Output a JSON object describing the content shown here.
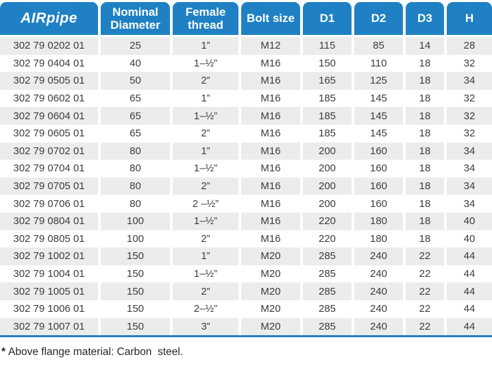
{
  "colors": {
    "header_blue": "#1f81c4",
    "row_stripe": "#ececec",
    "cell_text": "#3c3c3c"
  },
  "table": {
    "columns": [
      {
        "id": "brand",
        "label": "AIRpipe",
        "logo": true
      },
      {
        "id": "nominal-diameter",
        "label": "Nominal Diameter"
      },
      {
        "id": "female-thread",
        "label": "Female thread"
      },
      {
        "id": "bolt-size",
        "label": "Bolt size"
      },
      {
        "id": "d1",
        "label": "D1"
      },
      {
        "id": "d2",
        "label": "D2"
      },
      {
        "id": "d3",
        "label": "D3"
      },
      {
        "id": "h",
        "label": "H"
      }
    ],
    "rows": [
      [
        "302 79 0202 01",
        "25",
        "1”",
        "M12",
        "115",
        "85",
        "14",
        "28"
      ],
      [
        "302 79 0404 01",
        "40",
        "1–½”",
        "M16",
        "150",
        "110",
        "18",
        "32"
      ],
      [
        "302 79 0505 01",
        "50",
        "2”",
        "M16",
        "165",
        "125",
        "18",
        "34"
      ],
      [
        "302 79 0602 01",
        "65",
        "1”",
        "M16",
        "185",
        "145",
        "18",
        "32"
      ],
      [
        "302 79 0604 01",
        "65",
        "1–½”",
        "M16",
        "185",
        "145",
        "18",
        "32"
      ],
      [
        "302 79 0605 01",
        "65",
        "2”",
        "M16",
        "185",
        "145",
        "18",
        "32"
      ],
      [
        "302 79 0702 01",
        "80",
        "1”",
        "M16",
        "200",
        "160",
        "18",
        "34"
      ],
      [
        "302 79 0704 01",
        "80",
        "1–½”",
        "M16",
        "200",
        "160",
        "18",
        "34"
      ],
      [
        "302 79 0705 01",
        "80",
        "2”",
        "M16",
        "200",
        "160",
        "18",
        "34"
      ],
      [
        "302 79 0706 01",
        "80",
        "2 –½”",
        "M16",
        "200",
        "160",
        "18",
        "34"
      ],
      [
        "302 79 0804 01",
        "100",
        "1–½”",
        "M16",
        "220",
        "180",
        "18",
        "40"
      ],
      [
        "302 79 0805 01",
        "100",
        "2”",
        "M16",
        "220",
        "180",
        "18",
        "40"
      ],
      [
        "302 79 1002 01",
        "150",
        "1”",
        "M20",
        "285",
        "240",
        "22",
        "44"
      ],
      [
        "302 79 1004 01",
        "150",
        "1–½”",
        "M20",
        "285",
        "240",
        "22",
        "44"
      ],
      [
        "302 79 1005 01",
        "150",
        "2”",
        "M20",
        "285",
        "240",
        "22",
        "44"
      ],
      [
        "302 79 1006 01",
        "150",
        "2–½”",
        "M20",
        "285",
        "240",
        "22",
        "44"
      ],
      [
        "302 79 1007 01",
        "150",
        "3”",
        "M20",
        "285",
        "240",
        "22",
        "44"
      ]
    ]
  },
  "footnote": {
    "marker": "*",
    "text": "Above flange material: Carbon  steel."
  }
}
